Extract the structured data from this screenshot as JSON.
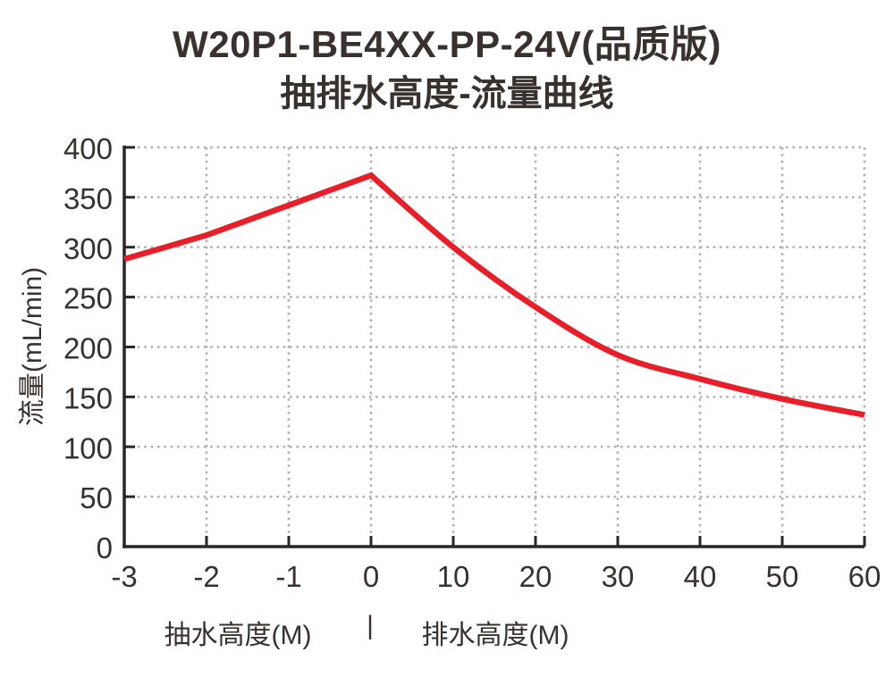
{
  "title": {
    "line1": "W20P1-BE4XX-PP-24V(品质版)",
    "line2": "抽排水高度-流量曲线"
  },
  "chart_data": {
    "type": "line",
    "title": "W20P1-BE4XX-PP-24V(品质版) 抽排水高度-流量曲线",
    "x_tick_labels": [
      "-3",
      "-2",
      "-1",
      "0",
      "10",
      "20",
      "30",
      "40",
      "50",
      "60"
    ],
    "x_spacing": "even",
    "series": [
      {
        "name": "流量曲线",
        "x": [
          -3,
          -2,
          -1,
          0,
          10,
          20,
          30,
          40,
          50,
          60
        ],
        "values": [
          288,
          312,
          342,
          372,
          300,
          240,
          192,
          168,
          148,
          132
        ]
      }
    ],
    "peak": {
      "x": 0,
      "value": 372
    },
    "ylabel": "流量(mL/min)",
    "xlabel_left": "抽水高度(M)",
    "xlabel_separator": "|",
    "xlabel_right": "排水高度(M)",
    "ylim": [
      0,
      400
    ],
    "yticks": [
      0,
      50,
      100,
      150,
      200,
      250,
      300,
      350,
      400
    ],
    "grid": "dotted",
    "legend": "none",
    "colors": {
      "curve": "#e81e28",
      "axis": "#2b2526",
      "grid": "#b2b0ae",
      "text": "#38312e"
    }
  }
}
